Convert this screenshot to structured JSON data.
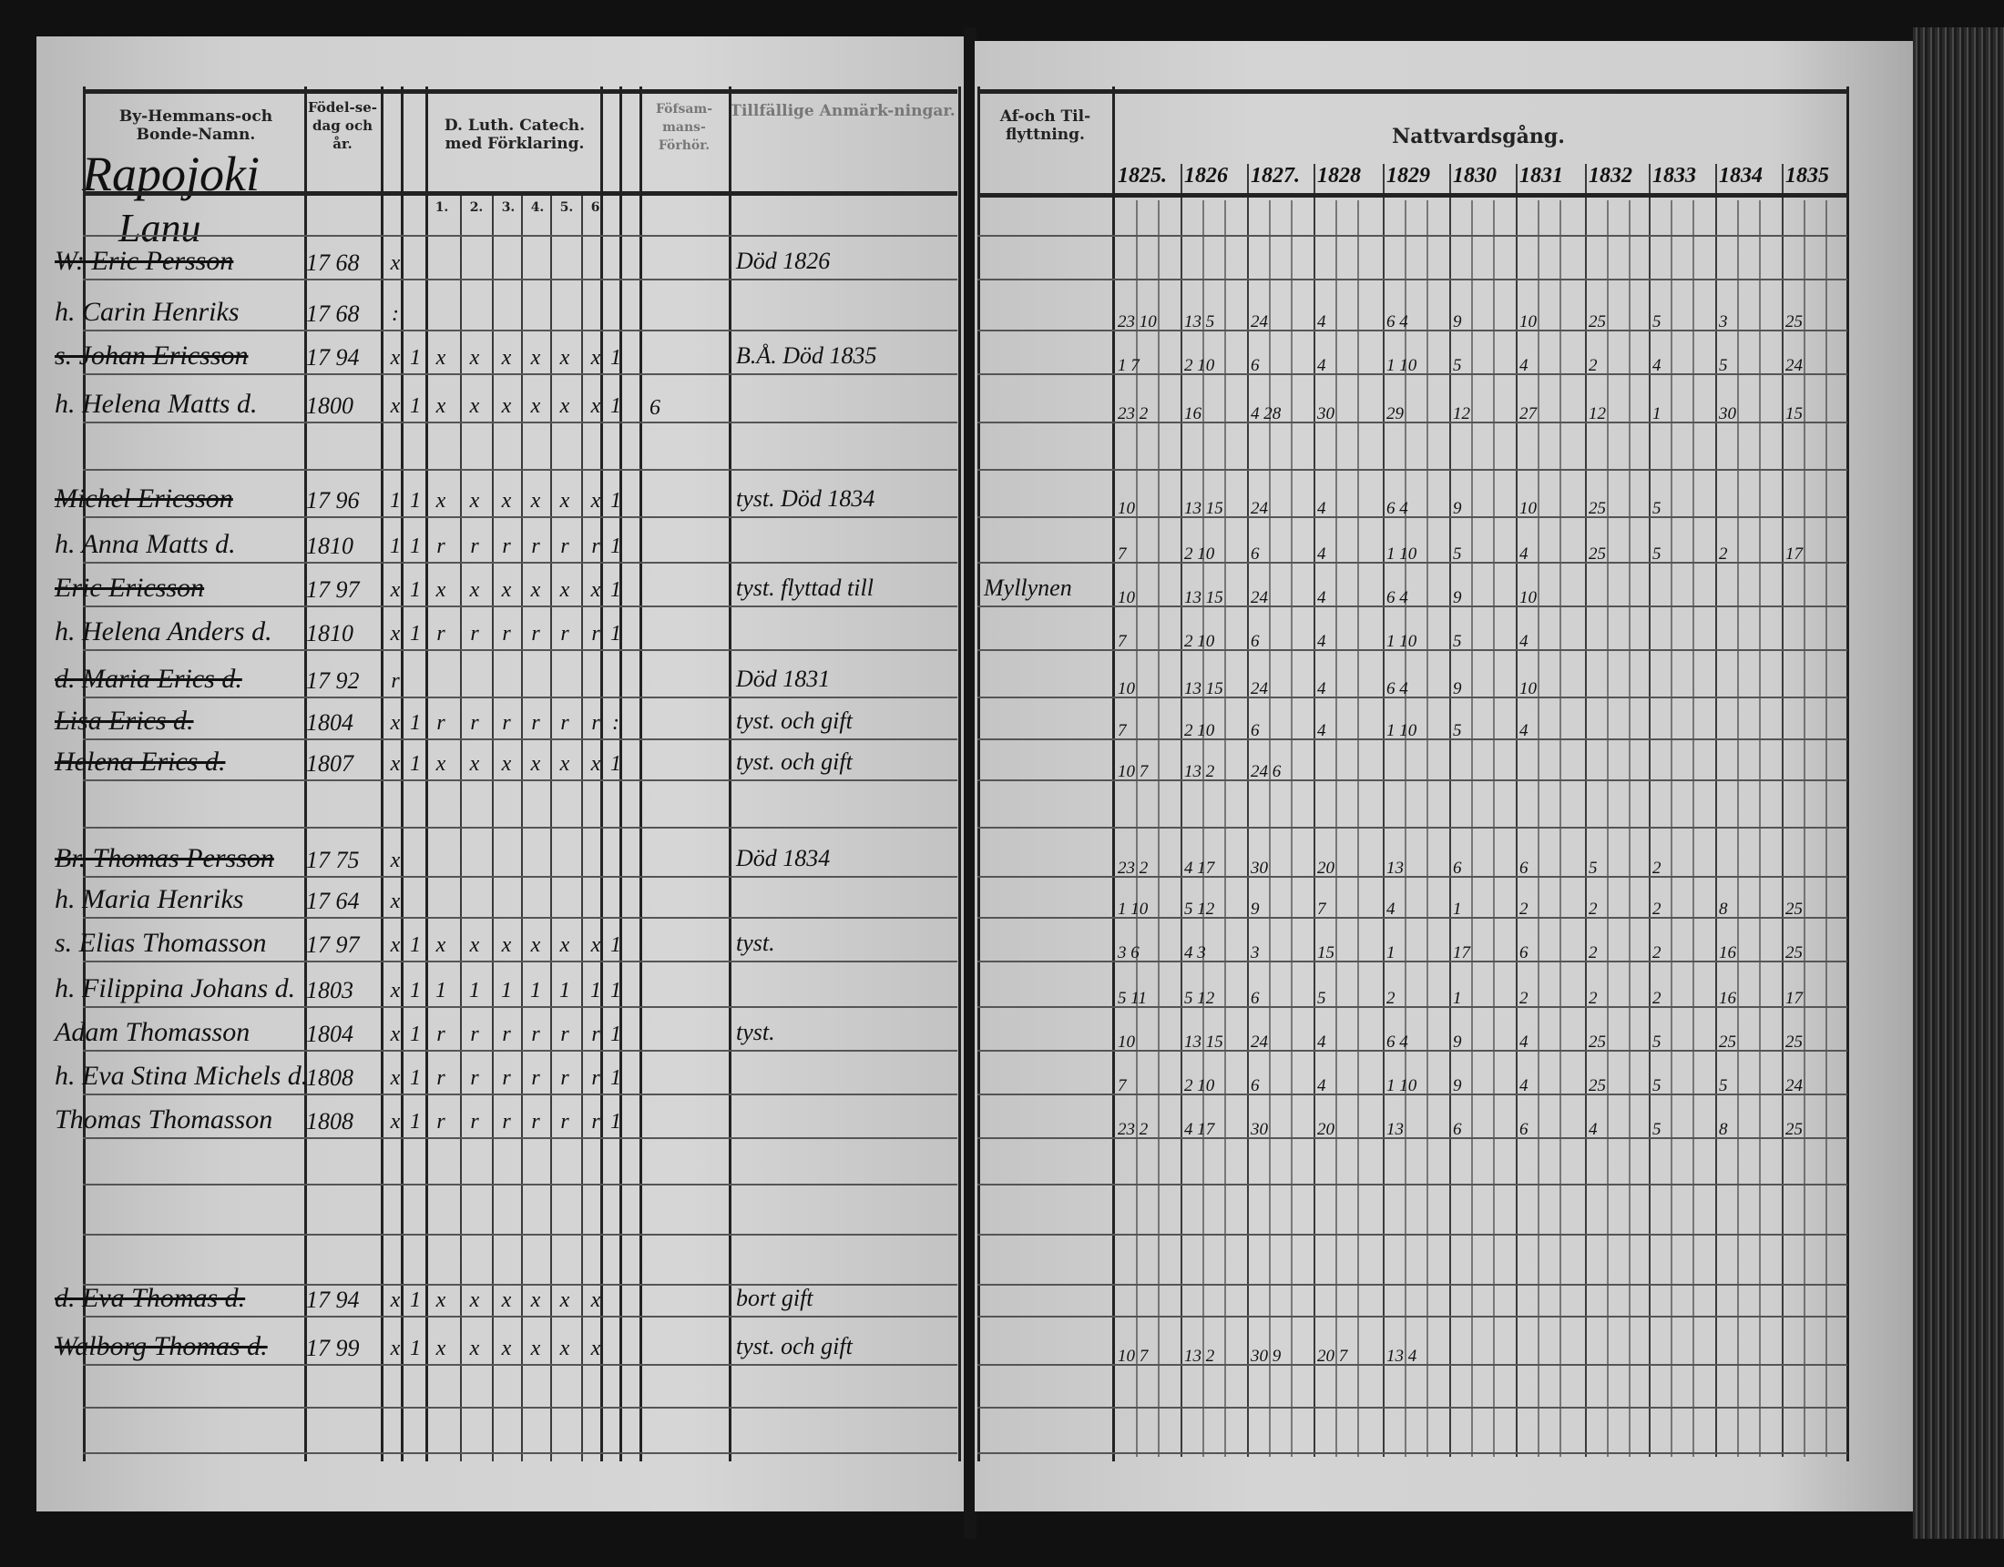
{
  "left_page": {
    "headers": {
      "name": "By-Hemmans-och Bonde-Namn.",
      "birth": "Födel-se-dag och år.",
      "catech": "D. Luth. Catech. med Förklaring.",
      "catech_parts": [
        "1.",
        "2.",
        "3.",
        "4.",
        "5.",
        "6."
      ],
      "forhor": "Föfsam-mans-Förhör.",
      "notes": "Tillfällige Anmärk-ningar."
    },
    "village": "Rapojoki",
    "farm": "Lanu"
  },
  "right_page": {
    "headers": {
      "moving": "Af-och Til-flyttning.",
      "communion": "Nattvardsgång.",
      "years": [
        "1825.",
        "1826",
        "1827.",
        "1828",
        "1829",
        "1830",
        "1831",
        "1832",
        "1833",
        "1834",
        "1835"
      ]
    },
    "moving_note": "Myllynen"
  },
  "rows": [
    {
      "name": "W: Eric Persson",
      "struck": true,
      "birth": "17 68",
      "marks": [
        "x"
      ],
      "note": "Död 1826",
      "communion": []
    },
    {
      "name": "h. Carin Henriks",
      "struck": false,
      "birth": "17 68",
      "marks": [
        ":"
      ],
      "note": "",
      "communion": [
        "23 10",
        "13 5",
        "24",
        "4",
        "6 4",
        "9",
        "10",
        "25",
        "5",
        "3",
        "25"
      ]
    },
    {
      "name": "s. Johan Ericsson",
      "struck": true,
      "birth": "17 94",
      "marks": [
        "x",
        "1",
        "x",
        "x",
        "x",
        "x",
        "x",
        "x",
        "1"
      ],
      "note": "B.Å. Död 1835",
      "communion": [
        "1 7",
        "2 10",
        "6",
        "4",
        "1 10",
        "5",
        "4",
        "2",
        "4",
        "5",
        "24"
      ]
    },
    {
      "name": "h. Helena Matts d.",
      "struck": false,
      "birth": "1800",
      "marks": [
        "x",
        "1",
        "x",
        "x",
        "x",
        "x",
        "x",
        "x",
        "1"
      ],
      "note": "",
      "forhor": "6",
      "communion": [
        "23 2",
        "16",
        "4 28",
        "30",
        "29",
        "12",
        "27",
        "12",
        "1",
        "30",
        "15"
      ]
    },
    {
      "name": "Michel Ericsson",
      "struck": true,
      "birth": "17 96",
      "marks": [
        "1",
        "1",
        "x",
        "x",
        "x",
        "x",
        "x",
        "x",
        "1"
      ],
      "note": "tyst. Död 1834",
      "communion": [
        "10",
        "13 15",
        "24",
        "4",
        "6 4",
        "9",
        "10",
        "25",
        "5",
        "",
        ""
      ]
    },
    {
      "name": "h. Anna Matts d.",
      "struck": false,
      "birth": "1810",
      "marks": [
        "1",
        "1",
        "r",
        "r",
        "r",
        "r",
        "r",
        "r",
        "1"
      ],
      "note": "",
      "communion": [
        "7",
        "2 10",
        "6",
        "4",
        "1 10",
        "5",
        "4",
        "25",
        "5",
        "2",
        "17"
      ]
    },
    {
      "name": "Eric Ericsson",
      "struck": true,
      "birth": "17 97",
      "marks": [
        "x",
        "1",
        "x",
        "x",
        "x",
        "x",
        "x",
        "x",
        "1"
      ],
      "note": "tyst. flyttad till",
      "moving": true,
      "communion": [
        "10",
        "13 15",
        "24",
        "4",
        "6 4",
        "9",
        "10",
        "",
        "",
        "",
        ""
      ]
    },
    {
      "name": "h. Helena Anders d.",
      "struck": false,
      "birth": "1810",
      "marks": [
        "x",
        "1",
        "r",
        "r",
        "r",
        "r",
        "r",
        "r",
        "1"
      ],
      "note": "",
      "communion": [
        "7",
        "2 10",
        "6",
        "4",
        "1 10",
        "5",
        "4",
        "",
        "",
        "",
        ""
      ]
    },
    {
      "name": "d. Maria Erics d.",
      "struck": true,
      "birth": "17 92",
      "marks": [
        "r"
      ],
      "note": "Död 1831",
      "communion": [
        "10",
        "13 15",
        "24",
        "4",
        "6 4",
        "9",
        "10",
        "",
        "",
        "",
        ""
      ]
    },
    {
      "name": "Lisa Erics d.",
      "struck": true,
      "birth": "1804",
      "marks": [
        "x",
        "1",
        "r",
        "r",
        "r",
        "r",
        "r",
        "r",
        ":"
      ],
      "note": "tyst. och gift",
      "communion": [
        "7",
        "2 10",
        "6",
        "4",
        "1 10",
        "5",
        "4",
        "",
        "",
        "",
        ""
      ]
    },
    {
      "name": "Helena Erics d.",
      "struck": true,
      "birth": "1807",
      "marks": [
        "x",
        "1",
        "x",
        "x",
        "x",
        "x",
        "x",
        "x",
        "1"
      ],
      "note": "tyst. och gift",
      "communion": [
        "10 7",
        "13 2",
        "24 6",
        "",
        "",
        "",
        "",
        "",
        "",
        "",
        ""
      ]
    },
    {
      "name": "Br. Thomas Persson",
      "struck": true,
      "birth": "17 75",
      "marks": [
        "x"
      ],
      "note": "Död 1834",
      "communion": [
        "23 2",
        "4 17",
        "30",
        "20",
        "13",
        "6",
        "6",
        "5",
        "2",
        "",
        ""
      ]
    },
    {
      "name": "h. Maria Henriks",
      "struck": false,
      "birth": "17 64",
      "marks": [
        "x"
      ],
      "note": "",
      "communion": [
        "1 10",
        "5 12",
        "9",
        "7",
        "4",
        "1",
        "2",
        "2",
        "2",
        "8",
        "25"
      ]
    },
    {
      "name": "s. Elias Thomasson",
      "struck": false,
      "birth": "17 97",
      "marks": [
        "x",
        "1",
        "x",
        "x",
        "x",
        "x",
        "x",
        "x",
        "1"
      ],
      "note": "tyst.",
      "communion": [
        "3 6",
        "4 3",
        "3",
        "15",
        "1",
        "17",
        "6",
        "2",
        "2",
        "16",
        "25"
      ]
    },
    {
      "name": "h. Filippina Johans d.",
      "struck": false,
      "birth": "1803",
      "marks": [
        "x",
        "1",
        "1",
        "1",
        "1",
        "1",
        "1",
        "1",
        "1"
      ],
      "note": "",
      "communion": [
        "5 11",
        "5 12",
        "6",
        "5",
        "2",
        "1",
        "2",
        "2",
        "2",
        "16",
        "17"
      ]
    },
    {
      "name": "Adam Thomasson",
      "struck": false,
      "birth": "1804",
      "marks": [
        "x",
        "1",
        "r",
        "r",
        "r",
        "r",
        "r",
        "r",
        "1"
      ],
      "note": "tyst.",
      "communion": [
        "10",
        "13 15",
        "24",
        "4",
        "6 4",
        "9",
        "4",
        "25",
        "5",
        "25",
        "25"
      ]
    },
    {
      "name": "h. Eva Stina Michels d.",
      "struck": false,
      "birth": "1808",
      "marks": [
        "x",
        "1",
        "r",
        "r",
        "r",
        "r",
        "r",
        "r",
        "1"
      ],
      "note": "",
      "communion": [
        "7",
        "2 10",
        "6",
        "4",
        "1 10",
        "9",
        "4",
        "25",
        "5",
        "5",
        "24"
      ]
    },
    {
      "name": "Thomas Thomasson",
      "struck": false,
      "birth": "1808",
      "marks": [
        "x",
        "1",
        "r",
        "r",
        "r",
        "r",
        "r",
        "r",
        "1"
      ],
      "note": "",
      "communion": [
        "23 2",
        "4 17",
        "30",
        "20",
        "13",
        "6",
        "6",
        "4",
        "5",
        "8",
        "25"
      ]
    },
    {
      "name": "d. Eva Thomas d.",
      "struck": true,
      "birth": "17 94",
      "marks": [
        "x",
        "1",
        "x",
        "x",
        "x",
        "x",
        "x",
        "x"
      ],
      "note": "bort gift",
      "communion": []
    },
    {
      "name": "Walborg Thomas d.",
      "struck": true,
      "birth": "17 99",
      "marks": [
        "x",
        "1",
        "x",
        "x",
        "x",
        "x",
        "x",
        "x"
      ],
      "note": "tyst. och gift",
      "communion": [
        "10 7",
        "13 2",
        "30 9",
        "20 7",
        "13 4",
        "",
        "",
        "",
        "",
        "",
        ""
      ]
    }
  ]
}
